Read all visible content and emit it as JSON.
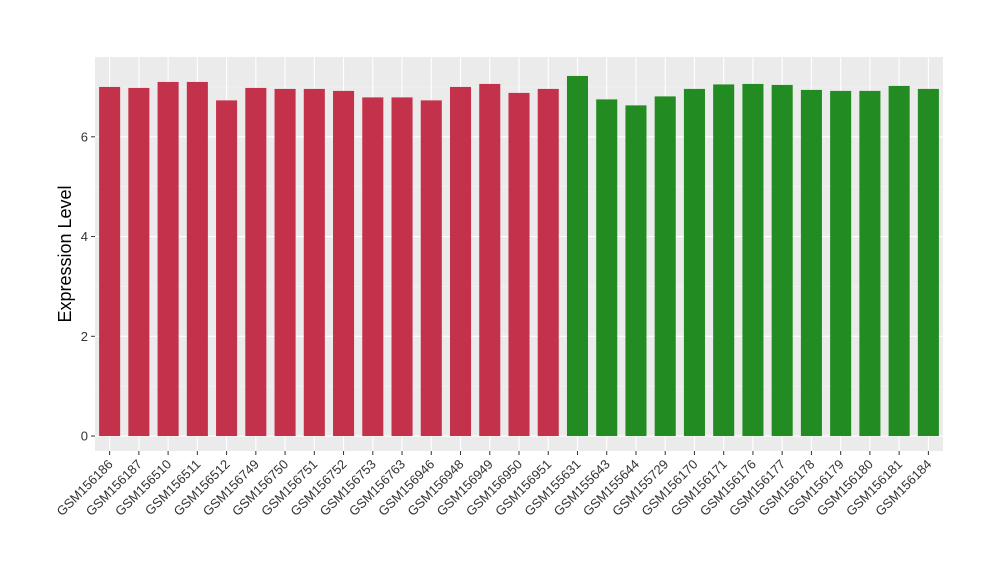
{
  "chart_data": {
    "type": "bar",
    "title": "",
    "xlabel": "",
    "ylabel": "Expression Level",
    "ylim": [
      -0.3,
      7.6
    ],
    "yticks": [
      0,
      2,
      4,
      6
    ],
    "grid": true,
    "background_color": "#EBEBEB",
    "categories": [
      "GSM156186",
      "GSM156187",
      "GSM156510",
      "GSM156511",
      "GSM156512",
      "GSM156749",
      "GSM156750",
      "GSM156751",
      "GSM156752",
      "GSM156753",
      "GSM156763",
      "GSM156946",
      "GSM156948",
      "GSM156949",
      "GSM156950",
      "GSM156951",
      "GSM155631",
      "GSM155643",
      "GSM155644",
      "GSM155729",
      "GSM156170",
      "GSM156171",
      "GSM156176",
      "GSM156177",
      "GSM156178",
      "GSM156179",
      "GSM156180",
      "GSM156181",
      "GSM156184"
    ],
    "values": [
      7.0,
      6.98,
      7.1,
      7.1,
      6.73,
      6.98,
      6.96,
      6.96,
      6.92,
      6.79,
      6.79,
      6.73,
      7.0,
      7.06,
      6.88,
      6.96,
      7.22,
      6.75,
      6.63,
      6.81,
      6.96,
      7.05,
      7.06,
      7.04,
      6.94,
      6.92,
      6.92,
      7.02,
      6.96
    ],
    "groups": [
      "a",
      "a",
      "a",
      "a",
      "a",
      "a",
      "a",
      "a",
      "a",
      "a",
      "a",
      "a",
      "a",
      "a",
      "a",
      "a",
      "b",
      "b",
      "b",
      "b",
      "b",
      "b",
      "b",
      "b",
      "b",
      "b",
      "b",
      "b",
      "b"
    ],
    "group_colors": {
      "a": "#C3314A",
      "b": "#228B22"
    }
  }
}
